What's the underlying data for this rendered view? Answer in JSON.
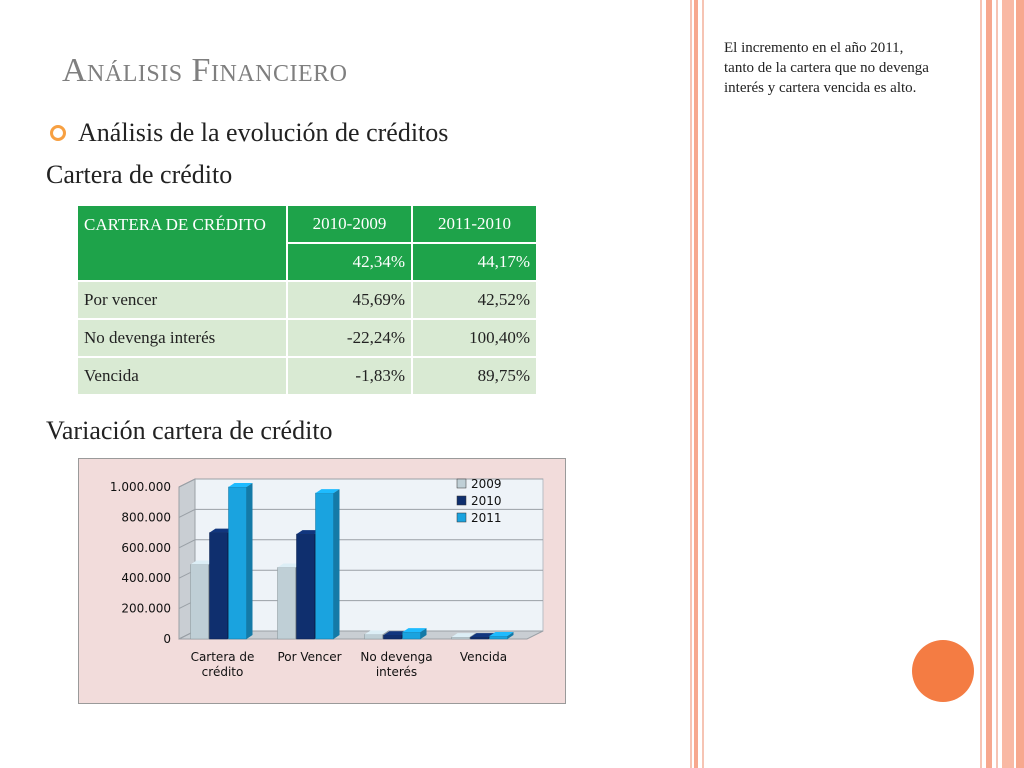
{
  "slide": {
    "title": "Análisis Financiero",
    "bullet": "Análisis de la evolución de créditos",
    "table_title": "Cartera de crédito",
    "chart_heading": "Variación cartera de crédito",
    "note": "El incremento en el año 2011, tanto de la cartera que no devenga interés y cartera vencida es alto."
  },
  "table": {
    "header_label": "CARTERA DE CRÉDITO",
    "header_years": [
      "2010-2009",
      "2011-2010"
    ],
    "header_totals": [
      "42,34%",
      "44,17%"
    ],
    "rows": [
      {
        "label": "Por vencer",
        "v1": "45,69%",
        "v2": "42,52%"
      },
      {
        "label": "No devenga interés",
        "v1": "-22,24%",
        "v2": "100,40%"
      },
      {
        "label": "Vencida",
        "v1": "-1,83%",
        "v2": "89,75%"
      }
    ]
  },
  "colors": {
    "table_header": "#1ea34a",
    "table_body": "#d9ead3",
    "chart_bg": "#f2dcdb",
    "series": [
      "#bfcfd6",
      "#0f2f6e",
      "#1aa3df"
    ],
    "accent_circle": "#f47c43"
  },
  "chart_data": {
    "type": "bar",
    "title": "",
    "categories": [
      "Cartera de crédito",
      "Por Vencer",
      "No devenga interés",
      "Vencida"
    ],
    "series": [
      {
        "name": "2009",
        "values": [
          490000,
          470000,
          30000,
          12000
        ]
      },
      {
        "name": "2010",
        "values": [
          700000,
          690000,
          25000,
          12000
        ]
      },
      {
        "name": "2011",
        "values": [
          1000000,
          960000,
          45000,
          20000
        ]
      }
    ],
    "yticks": [
      "0",
      "200.000",
      "400.000",
      "600.000",
      "800.000",
      "1.000.000"
    ],
    "ylim": [
      0,
      1000000
    ],
    "legend": "top-right",
    "grid": true
  }
}
